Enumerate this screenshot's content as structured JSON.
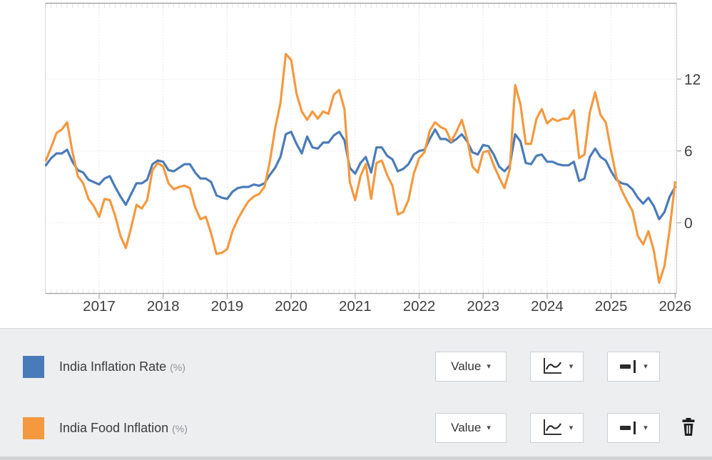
{
  "chart_data": {
    "type": "line",
    "title": "",
    "xlabel": "",
    "ylabel": "",
    "x_tick_labels": [
      "2017",
      "2018",
      "2019",
      "2020",
      "2021",
      "2022",
      "2023",
      "2024",
      "2025",
      "2026"
    ],
    "y_ticks": [
      12,
      6,
      0
    ],
    "y_tick_labels": [
      "12",
      "6",
      "0"
    ],
    "xlim": [
      2016.153,
      2026.03
    ],
    "ylim": [
      -5.93,
      18.37
    ],
    "grid": "dotted",
    "legend_position": "bottom-panel",
    "months": [
      "2016-03",
      "2016-04",
      "2016-05",
      "2016-06",
      "2016-07",
      "2016-08",
      "2016-09",
      "2016-10",
      "2016-11",
      "2016-12",
      "2017-01",
      "2017-02",
      "2017-03",
      "2017-04",
      "2017-05",
      "2017-06",
      "2017-07",
      "2017-08",
      "2017-09",
      "2017-10",
      "2017-11",
      "2017-12",
      "2018-01",
      "2018-02",
      "2018-03",
      "2018-04",
      "2018-05",
      "2018-06",
      "2018-07",
      "2018-08",
      "2018-09",
      "2018-10",
      "2018-11",
      "2018-12",
      "2019-01",
      "2019-02",
      "2019-03",
      "2019-04",
      "2019-05",
      "2019-06",
      "2019-07",
      "2019-08",
      "2019-09",
      "2019-10",
      "2019-11",
      "2019-12",
      "2020-01",
      "2020-02",
      "2020-03",
      "2020-04",
      "2020-05",
      "2020-06",
      "2020-07",
      "2020-08",
      "2020-09",
      "2020-10",
      "2020-11",
      "2020-12",
      "2021-01",
      "2021-02",
      "2021-03",
      "2021-04",
      "2021-05",
      "2021-06",
      "2021-07",
      "2021-08",
      "2021-09",
      "2021-10",
      "2021-11",
      "2021-12",
      "2022-01",
      "2022-02",
      "2022-03",
      "2022-04",
      "2022-05",
      "2022-06",
      "2022-07",
      "2022-08",
      "2022-09",
      "2022-10",
      "2022-11",
      "2022-12",
      "2023-01",
      "2023-02",
      "2023-03",
      "2023-04",
      "2023-05",
      "2023-06",
      "2023-07",
      "2023-08",
      "2023-09",
      "2023-10",
      "2023-11",
      "2023-12",
      "2024-01",
      "2024-02",
      "2024-03",
      "2024-04",
      "2024-05",
      "2024-06",
      "2024-07",
      "2024-08",
      "2024-09",
      "2024-10",
      "2024-11",
      "2024-12",
      "2025-01",
      "2025-02",
      "2025-03",
      "2025-04",
      "2025-05",
      "2025-06",
      "2025-07",
      "2025-08",
      "2025-09",
      "2025-10",
      "2025-11",
      "2025-12",
      "2026-01"
    ],
    "series": [
      {
        "name": "India Inflation Rate",
        "unit": "%",
        "color": "#4a7bb9",
        "values": [
          4.8,
          5.4,
          5.8,
          5.8,
          6.1,
          5.1,
          4.4,
          4.2,
          3.6,
          3.4,
          3.2,
          3.7,
          3.9,
          3.0,
          2.2,
          1.5,
          2.4,
          3.3,
          3.3,
          3.6,
          4.9,
          5.2,
          5.1,
          4.4,
          4.3,
          4.6,
          4.9,
          4.9,
          4.2,
          3.7,
          3.7,
          3.4,
          2.3,
          2.1,
          2.0,
          2.6,
          2.9,
          3.0,
          3.0,
          3.2,
          3.1,
          3.3,
          4.0,
          4.6,
          5.5,
          7.4,
          7.6,
          6.6,
          5.8,
          7.2,
          6.3,
          6.2,
          6.7,
          6.7,
          7.3,
          7.6,
          6.9,
          4.6,
          4.1,
          5.0,
          5.5,
          4.2,
          6.3,
          6.3,
          5.6,
          5.3,
          4.3,
          4.5,
          4.9,
          5.7,
          6.0,
          6.1,
          7.0,
          7.8,
          7.0,
          7.0,
          6.7,
          7.0,
          7.4,
          6.8,
          5.9,
          5.7,
          6.5,
          6.4,
          5.7,
          4.7,
          4.3,
          4.8,
          7.4,
          6.8,
          5.0,
          4.9,
          5.6,
          5.7,
          5.1,
          5.1,
          4.9,
          4.8,
          4.8,
          5.1,
          3.5,
          3.7,
          5.5,
          6.2,
          5.5,
          5.2,
          4.3,
          3.6,
          3.3,
          3.2,
          2.8,
          2.1,
          1.6,
          2.1,
          1.4,
          0.3,
          0.9,
          2.2,
          3.0
        ]
      },
      {
        "name": "India Food Inflation",
        "unit": "%",
        "color": "#f4993f",
        "values": [
          5.2,
          6.3,
          7.5,
          7.8,
          8.4,
          5.9,
          3.9,
          3.3,
          2.0,
          1.4,
          0.5,
          2.0,
          1.9,
          0.6,
          -1.1,
          -2.1,
          -0.4,
          1.5,
          1.2,
          1.9,
          4.4,
          5.0,
          4.7,
          3.3,
          2.8,
          3.0,
          3.1,
          2.9,
          1.3,
          0.3,
          0.5,
          -0.9,
          -2.6,
          -2.5,
          -2.2,
          -0.7,
          0.3,
          1.1,
          1.8,
          2.2,
          2.4,
          3.0,
          5.1,
          7.9,
          10.0,
          14.1,
          13.6,
          10.8,
          9.3,
          8.6,
          9.3,
          8.7,
          9.3,
          9.1,
          10.7,
          11.1,
          9.5,
          3.4,
          1.9,
          3.9,
          4.9,
          2.0,
          5.0,
          5.2,
          4.0,
          3.1,
          0.7,
          0.9,
          1.9,
          4.1,
          5.4,
          5.9,
          7.7,
          8.4,
          8.0,
          7.8,
          6.8,
          7.6,
          8.6,
          7.0,
          4.7,
          4.2,
          5.9,
          6.0,
          4.8,
          3.8,
          2.9,
          4.5,
          11.5,
          9.9,
          6.6,
          6.6,
          8.7,
          9.5,
          8.3,
          8.7,
          8.5,
          8.7,
          8.7,
          9.4,
          5.4,
          5.7,
          9.2,
          10.9,
          9.0,
          8.4,
          6.0,
          3.8,
          2.7,
          1.8,
          1.0,
          -1.1,
          -1.8,
          -0.7,
          -2.3,
          -5.0,
          -3.6,
          -0.5,
          3.4
        ]
      }
    ]
  },
  "legend": {
    "value_button_label": "Value",
    "caret": "▾",
    "rows": [
      {
        "label": "India Inflation Rate",
        "unit": "(%)"
      },
      {
        "label": "India Food Inflation",
        "unit": "(%)"
      }
    ]
  },
  "colors": {
    "grid": "#e2e2e2",
    "axis_top_bottom": "#98global9b9d",
    "tick": "#a6a6a6",
    "tick_label": "#3f3f3f"
  }
}
